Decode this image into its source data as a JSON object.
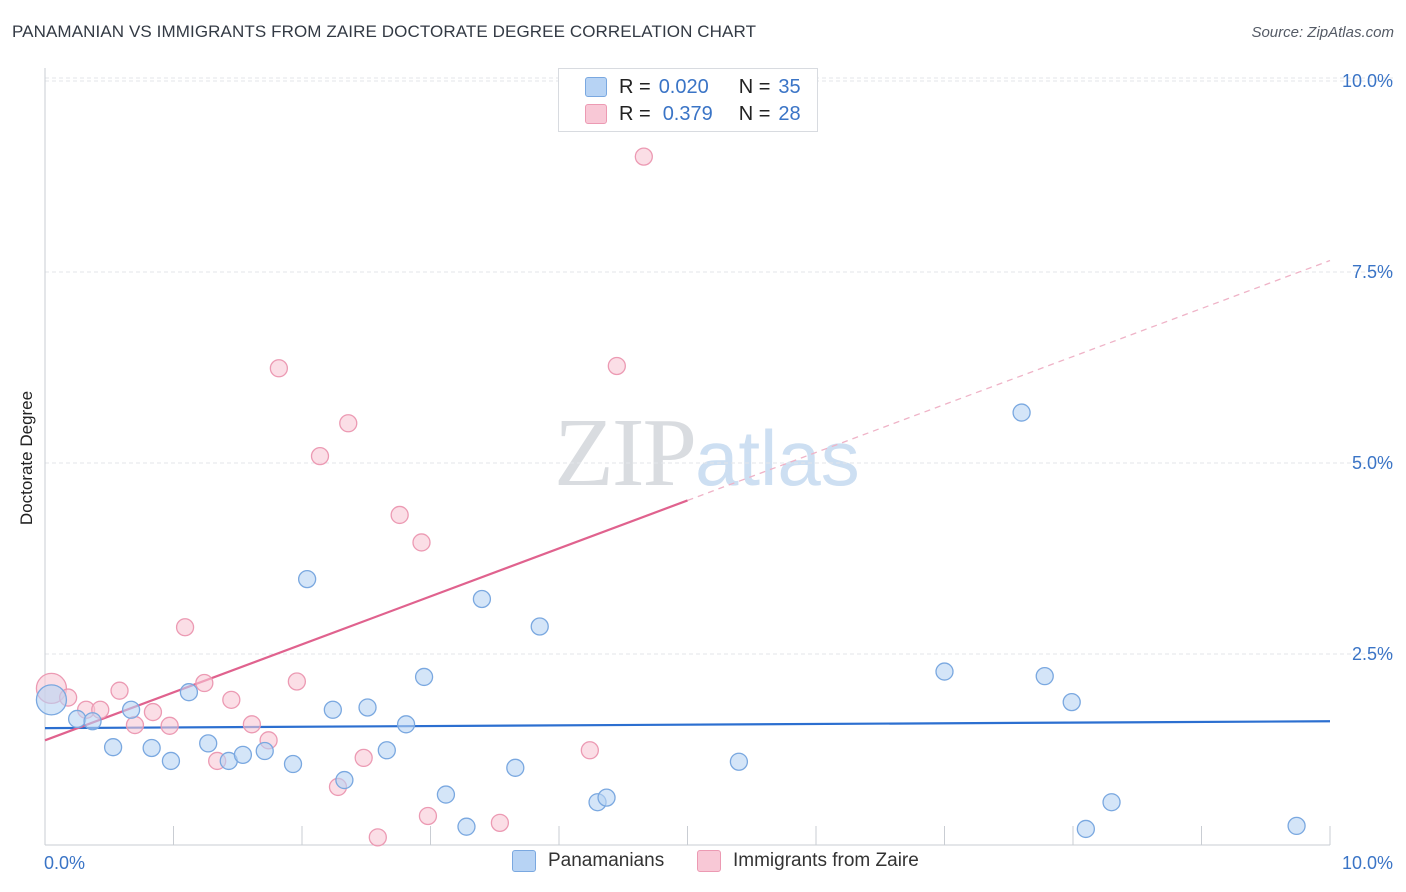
{
  "header": {
    "title": "PANAMANIAN VS IMMIGRANTS FROM ZAIRE DOCTORATE DEGREE CORRELATION CHART",
    "source": "Source: ZipAtlas.com"
  },
  "watermark": {
    "zip": "ZIP",
    "atlas": "atlas"
  },
  "legend_top": {
    "rows": [
      {
        "r_label": "R =",
        "r_value": "0.020",
        "n_label": "N =",
        "n_value": "35"
      },
      {
        "r_label": "R =",
        "r_value": "0.379",
        "n_label": "N =",
        "n_value": "28"
      }
    ]
  },
  "colors": {
    "blue_fill": "#b7d3f4",
    "blue_stroke": "#7aa8e0",
    "blue_line": "#2c6fd0",
    "pink_fill": "#f8c8d6",
    "pink_stroke": "#ec9ab3",
    "pink_line": "#e0628e",
    "axis_text": "#3a74c6"
  },
  "chart_data": {
    "type": "scatter",
    "title": "PANAMANIAN VS IMMIGRANTS FROM ZAIRE DOCTORATE DEGREE CORRELATION CHART",
    "xlabel": "",
    "ylabel": "Doctorate Degree",
    "xlim": [
      0,
      10
    ],
    "ylim": [
      0,
      10.5
    ],
    "x_ticks": [
      0,
      10
    ],
    "x_tick_labels": [
      "0.0%",
      "10.0%"
    ],
    "y_ticks": [
      2.5,
      5.0,
      7.5,
      10.0
    ],
    "y_tick_labels": [
      "2.5%",
      "5.0%",
      "7.5%",
      "10.0%"
    ],
    "legend_position": "top-center",
    "series": [
      {
        "name": "Panamanians",
        "color": "#b7d3f4",
        "trend": {
          "x0": 0,
          "y0": 1.53,
          "x1": 10,
          "y1": 1.62,
          "solid_until": 10
        },
        "points": [
          {
            "x": 0.05,
            "y": 1.9,
            "big": true
          },
          {
            "x": 0.25,
            "y": 1.65
          },
          {
            "x": 0.37,
            "y": 1.62
          },
          {
            "x": 0.53,
            "y": 1.28
          },
          {
            "x": 0.67,
            "y": 1.77
          },
          {
            "x": 0.83,
            "y": 1.27
          },
          {
            "x": 0.98,
            "y": 1.1
          },
          {
            "x": 1.12,
            "y": 2.0
          },
          {
            "x": 1.27,
            "y": 1.33
          },
          {
            "x": 1.43,
            "y": 1.1
          },
          {
            "x": 1.54,
            "y": 1.18
          },
          {
            "x": 1.71,
            "y": 1.23
          },
          {
            "x": 1.93,
            "y": 1.06
          },
          {
            "x": 2.04,
            "y": 3.48
          },
          {
            "x": 2.24,
            "y": 1.77
          },
          {
            "x": 2.33,
            "y": 0.85
          },
          {
            "x": 2.51,
            "y": 1.8
          },
          {
            "x": 2.66,
            "y": 1.24
          },
          {
            "x": 2.81,
            "y": 1.58
          },
          {
            "x": 2.95,
            "y": 2.2
          },
          {
            "x": 3.12,
            "y": 0.66
          },
          {
            "x": 3.28,
            "y": 0.24
          },
          {
            "x": 3.4,
            "y": 3.22
          },
          {
            "x": 3.66,
            "y": 1.01
          },
          {
            "x": 3.85,
            "y": 2.86
          },
          {
            "x": 4.3,
            "y": 0.56
          },
          {
            "x": 4.37,
            "y": 0.62
          },
          {
            "x": 5.4,
            "y": 1.09
          },
          {
            "x": 7.0,
            "y": 2.27
          },
          {
            "x": 7.78,
            "y": 2.21
          },
          {
            "x": 7.99,
            "y": 1.87
          },
          {
            "x": 7.6,
            "y": 5.66
          },
          {
            "x": 8.1,
            "y": 0.21
          },
          {
            "x": 8.3,
            "y": 0.56
          },
          {
            "x": 9.74,
            "y": 0.25
          }
        ]
      },
      {
        "name": "Immigrants from Zaire",
        "color": "#f8c8d6",
        "trend": {
          "x0": 0,
          "y0": 1.37,
          "x1": 10,
          "y1": 7.65,
          "solid_until": 5.0
        },
        "points": [
          {
            "x": 0.05,
            "y": 2.05,
            "big": true
          },
          {
            "x": 0.18,
            "y": 1.93
          },
          {
            "x": 0.32,
            "y": 1.77
          },
          {
            "x": 0.43,
            "y": 1.77
          },
          {
            "x": 0.58,
            "y": 2.02
          },
          {
            "x": 0.7,
            "y": 1.57
          },
          {
            "x": 0.84,
            "y": 1.74
          },
          {
            "x": 0.97,
            "y": 1.56
          },
          {
            "x": 1.09,
            "y": 2.85
          },
          {
            "x": 1.24,
            "y": 2.12
          },
          {
            "x": 1.34,
            "y": 1.1
          },
          {
            "x": 1.45,
            "y": 1.9
          },
          {
            "x": 1.61,
            "y": 1.58
          },
          {
            "x": 1.74,
            "y": 1.37
          },
          {
            "x": 1.82,
            "y": 6.24
          },
          {
            "x": 1.96,
            "y": 2.14
          },
          {
            "x": 2.14,
            "y": 5.09
          },
          {
            "x": 2.28,
            "y": 0.76
          },
          {
            "x": 2.36,
            "y": 5.52
          },
          {
            "x": 2.48,
            "y": 1.14
          },
          {
            "x": 2.59,
            "y": 0.1
          },
          {
            "x": 2.76,
            "y": 4.32
          },
          {
            "x": 2.93,
            "y": 3.96
          },
          {
            "x": 2.98,
            "y": 0.38
          },
          {
            "x": 3.54,
            "y": 0.29
          },
          {
            "x": 4.24,
            "y": 1.24
          },
          {
            "x": 4.45,
            "y": 6.27
          },
          {
            "x": 4.66,
            "y": 9.01
          }
        ]
      }
    ]
  }
}
